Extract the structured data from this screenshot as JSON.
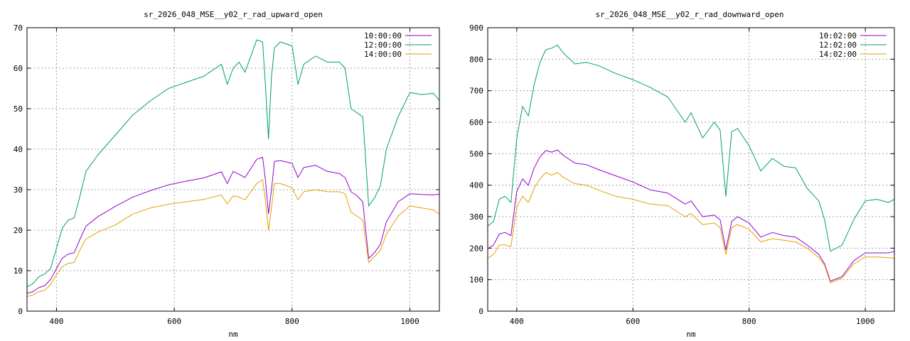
{
  "chart_data": [
    {
      "type": "line",
      "title": "sr_2026_048_MSE__y02_r_rad_upward_open",
      "xlabel": "nm",
      "ylabel": "",
      "xlim": [
        350,
        1050
      ],
      "ylim": [
        0,
        70
      ],
      "xticks": [
        400,
        600,
        800,
        1000
      ],
      "yticks": [
        0,
        10,
        20,
        30,
        40,
        50,
        60,
        70
      ],
      "grid": true,
      "legend_position": "top-right",
      "series": [
        {
          "name": "10:00:00",
          "color": "#9400d3",
          "x": [
            350,
            360,
            370,
            380,
            390,
            400,
            410,
            420,
            430,
            440,
            450,
            470,
            500,
            530,
            560,
            590,
            620,
            650,
            680,
            690,
            700,
            710,
            720,
            740,
            750,
            755,
            760,
            765,
            770,
            780,
            800,
            810,
            820,
            840,
            860,
            880,
            890,
            900,
            910,
            920,
            930,
            940,
            950,
            960,
            980,
            1000,
            1020,
            1040,
            1050
          ],
          "y": [
            4.4,
            4.8,
            5.8,
            6.3,
            7.8,
            10.5,
            13.1,
            14.1,
            14.4,
            17.8,
            21.0,
            23.3,
            25.9,
            28.2,
            29.8,
            31.2,
            32.1,
            32.9,
            34.4,
            31.5,
            34.5,
            33.8,
            33.0,
            37.5,
            38.0,
            32.0,
            24.0,
            30.0,
            37.0,
            37.2,
            36.5,
            33.0,
            35.5,
            36.0,
            34.5,
            34.0,
            33.0,
            29.5,
            28.5,
            27.0,
            13.0,
            14.5,
            16.5,
            22.0,
            27.0,
            29.0,
            28.8,
            28.7,
            28.9
          ]
        },
        {
          "name": "12:00:00",
          "color": "#009e73",
          "x": [
            350,
            360,
            370,
            380,
            390,
            400,
            410,
            420,
            430,
            440,
            450,
            470,
            500,
            530,
            560,
            590,
            620,
            650,
            680,
            690,
            700,
            710,
            720,
            740,
            750,
            755,
            760,
            765,
            770,
            780,
            800,
            810,
            820,
            840,
            860,
            880,
            890,
            900,
            910,
            920,
            930,
            940,
            950,
            960,
            980,
            1000,
            1020,
            1040,
            1050
          ],
          "y": [
            6.0,
            6.8,
            8.5,
            9.2,
            10.5,
            15.5,
            20.5,
            22.5,
            23.0,
            28.5,
            34.5,
            38.5,
            43.5,
            48.5,
            52.0,
            55.0,
            56.5,
            58.0,
            61.0,
            56.0,
            60.0,
            61.5,
            59.0,
            67.0,
            66.5,
            55.0,
            42.5,
            58.0,
            65.0,
            66.5,
            65.5,
            56.0,
            61.0,
            63.0,
            61.5,
            61.5,
            60.0,
            50.0,
            49.0,
            48.0,
            26.0,
            28.0,
            31.0,
            40.0,
            48.0,
            54.0,
            53.5,
            53.8,
            52.0
          ]
        },
        {
          "name": "14:00:00",
          "color": "#e69f00",
          "x": [
            350,
            360,
            370,
            380,
            390,
            400,
            410,
            420,
            430,
            440,
            450,
            470,
            500,
            530,
            560,
            590,
            620,
            650,
            680,
            690,
            700,
            710,
            720,
            740,
            750,
            755,
            760,
            765,
            770,
            780,
            800,
            810,
            820,
            840,
            860,
            880,
            890,
            900,
            910,
            920,
            930,
            940,
            950,
            960,
            980,
            1000,
            1020,
            1040,
            1050
          ],
          "y": [
            3.6,
            4.0,
            4.8,
            5.2,
            6.5,
            9.0,
            11.0,
            11.8,
            12.0,
            15.2,
            17.8,
            19.5,
            21.3,
            24.0,
            25.5,
            26.4,
            27.0,
            27.6,
            28.7,
            26.5,
            28.5,
            28.2,
            27.5,
            31.5,
            32.5,
            27.0,
            20.0,
            25.5,
            31.5,
            31.5,
            30.5,
            27.5,
            29.5,
            30.0,
            29.5,
            29.5,
            29.0,
            24.5,
            23.5,
            22.5,
            12.0,
            13.5,
            15.0,
            19.0,
            23.5,
            26.0,
            25.5,
            25.0,
            24.0
          ]
        }
      ]
    },
    {
      "type": "line",
      "title": "sr_2026_048_MSE__y02_r_rad_downward_open",
      "xlabel": "nm",
      "ylabel": "",
      "xlim": [
        350,
        1050
      ],
      "ylim": [
        0,
        900
      ],
      "xticks": [
        400,
        600,
        800,
        1000
      ],
      "yticks": [
        0,
        100,
        200,
        300,
        400,
        500,
        600,
        700,
        800,
        900
      ],
      "grid": true,
      "legend_position": "top-right",
      "series": [
        {
          "name": "10:02:00",
          "color": "#9400d3",
          "x": [
            350,
            360,
            370,
            380,
            390,
            400,
            410,
            420,
            430,
            440,
            450,
            460,
            470,
            480,
            500,
            520,
            540,
            570,
            600,
            630,
            660,
            690,
            700,
            720,
            740,
            750,
            760,
            770,
            780,
            800,
            820,
            840,
            860,
            880,
            900,
            920,
            930,
            940,
            960,
            980,
            1000,
            1020,
            1040,
            1050
          ],
          "y": [
            198,
            210,
            245,
            250,
            240,
            380,
            420,
            400,
            455,
            490,
            510,
            505,
            512,
            495,
            470,
            465,
            450,
            430,
            410,
            385,
            375,
            340,
            350,
            300,
            305,
            290,
            195,
            285,
            300,
            280,
            235,
            250,
            240,
            235,
            210,
            180,
            150,
            95,
            110,
            160,
            185,
            185,
            185,
            190
          ]
        },
        {
          "name": "12:02:00",
          "color": "#009e73",
          "x": [
            350,
            360,
            370,
            380,
            390,
            400,
            410,
            420,
            430,
            440,
            450,
            460,
            470,
            480,
            500,
            520,
            540,
            570,
            600,
            630,
            660,
            690,
            700,
            720,
            740,
            750,
            760,
            770,
            780,
            800,
            820,
            840,
            860,
            880,
            900,
            920,
            930,
            940,
            960,
            980,
            1000,
            1020,
            1040,
            1050
          ],
          "y": [
            270,
            285,
            355,
            365,
            345,
            550,
            650,
            620,
            720,
            790,
            830,
            835,
            845,
            820,
            785,
            790,
            780,
            755,
            735,
            710,
            680,
            600,
            630,
            550,
            600,
            575,
            365,
            570,
            580,
            525,
            445,
            485,
            460,
            455,
            390,
            350,
            290,
            190,
            210,
            290,
            350,
            355,
            345,
            355
          ]
        },
        {
          "name": "14:02:00",
          "color": "#e69f00",
          "x": [
            350,
            360,
            370,
            380,
            390,
            400,
            410,
            420,
            430,
            440,
            450,
            460,
            470,
            480,
            500,
            520,
            540,
            570,
            600,
            630,
            660,
            690,
            700,
            720,
            740,
            750,
            760,
            770,
            780,
            800,
            820,
            840,
            860,
            880,
            900,
            920,
            930,
            940,
            960,
            980,
            1000,
            1020,
            1040,
            1050
          ],
          "y": [
            168,
            180,
            210,
            210,
            205,
            330,
            365,
            345,
            390,
            420,
            440,
            432,
            440,
            425,
            405,
            400,
            385,
            365,
            355,
            340,
            335,
            300,
            310,
            275,
            280,
            265,
            180,
            265,
            275,
            260,
            220,
            230,
            225,
            220,
            200,
            170,
            145,
            90,
            105,
            150,
            172,
            172,
            170,
            168
          ]
        }
      ]
    }
  ]
}
